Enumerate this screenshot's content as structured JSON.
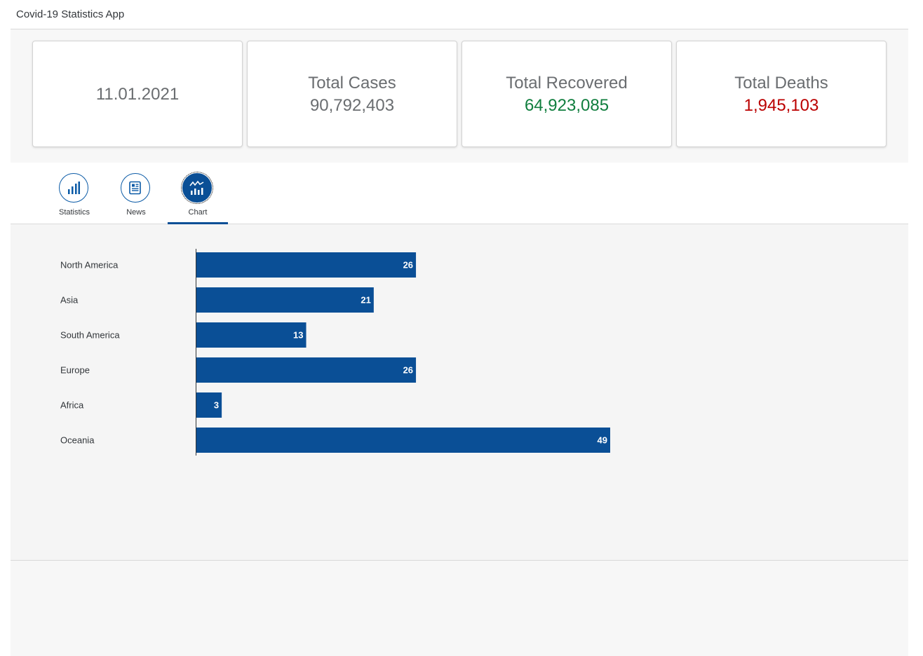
{
  "header": {
    "title": "Covid-19 Statistics App"
  },
  "tiles": {
    "date": "11.01.2021",
    "cases": {
      "label": "Total Cases",
      "value": "90,792,403",
      "color": "#6a6d70"
    },
    "recovered": {
      "label": "Total Recovered",
      "value": "64,923,085",
      "color": "#107e3e"
    },
    "deaths": {
      "label": "Total Deaths",
      "value": "1,945,103",
      "color": "#bb0000"
    }
  },
  "tabs": [
    {
      "label": "Statistics",
      "icon": "bar-chart-icon"
    },
    {
      "label": "News",
      "icon": "newspaper-icon"
    },
    {
      "label": "Chart",
      "icon": "line-bar-chart-icon",
      "selected": true
    }
  ],
  "chart_data": {
    "type": "bar",
    "orientation": "horizontal",
    "categories": [
      "North America",
      "Asia",
      "South America",
      "Europe",
      "Africa",
      "Oceania"
    ],
    "values": [
      26,
      21,
      13,
      26,
      3,
      49
    ],
    "bar_color": "#0a4f96",
    "data_labels": true,
    "title": "",
    "xlabel": "",
    "ylabel": ""
  }
}
